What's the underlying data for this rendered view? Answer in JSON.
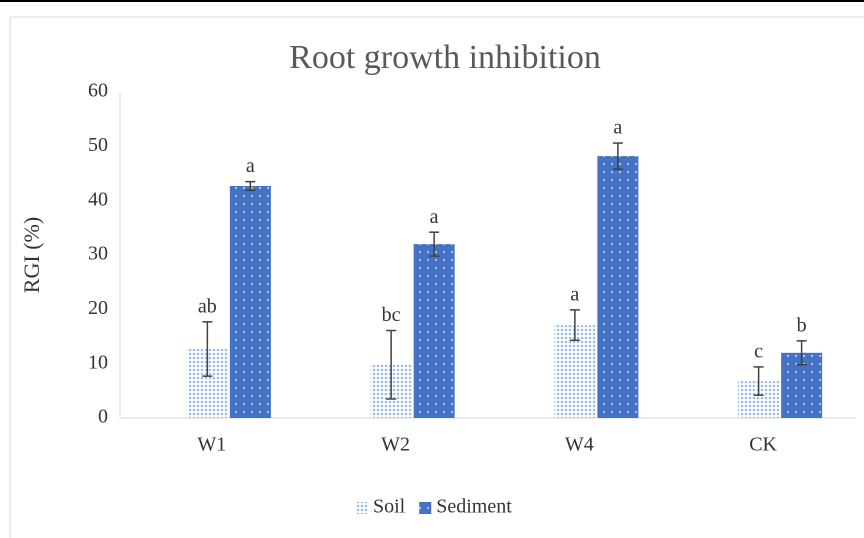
{
  "chart_data": {
    "type": "bar",
    "title": "Root growth inhibition",
    "y_label": "RGI (%)",
    "categories": [
      "W1",
      "W2",
      "W4",
      "CK"
    ],
    "series": [
      {
        "name": "Soil",
        "color": "#9dbbe3",
        "values": [
          12.7,
          9.8,
          17.1,
          6.8
        ],
        "errors": [
          5,
          6.3,
          2.8,
          2.6
        ],
        "letters": [
          "ab",
          "bc",
          "a",
          "c"
        ]
      },
      {
        "name": "Sediment",
        "color": "#4472c4",
        "values": [
          42.7,
          32,
          48.2,
          12
        ],
        "errors": [
          0.8,
          2.2,
          2.4,
          2.2
        ],
        "letters": [
          "a",
          "a",
          "a",
          "b"
        ]
      }
    ],
    "ylim": [
      0,
      60
    ],
    "yticks": [
      0,
      10,
      20,
      30,
      40,
      50,
      60
    ],
    "grid": false,
    "legend": "bottom"
  }
}
